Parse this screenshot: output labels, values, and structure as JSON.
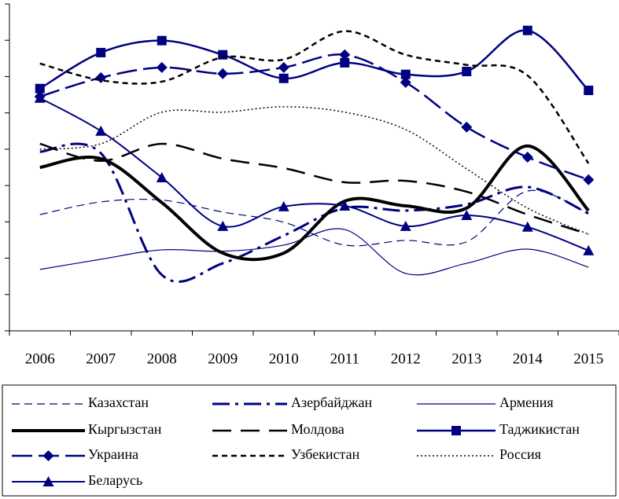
{
  "chart_data": {
    "type": "line",
    "categories": [
      "2006",
      "2007",
      "2008",
      "2009",
      "2010",
      "2011",
      "2012",
      "2013",
      "2014",
      "2015"
    ],
    "ylim": [
      0,
      9
    ],
    "yticks": [
      0,
      1,
      2,
      3,
      4,
      5,
      6,
      7,
      8,
      9
    ],
    "smooth": true,
    "legend": "bottom",
    "series": [
      {
        "name": "Казахстан",
        "color": "#000080",
        "dash": "10 6",
        "width": 1.2,
        "marker": "none",
        "values": [
          3.2,
          3.55,
          3.6,
          3.27,
          2.99,
          2.36,
          2.49,
          2.45,
          3.85,
          3.23
        ]
      },
      {
        "name": "Азербайджан",
        "color": "#000080",
        "dash": "22 7 4 7",
        "width": 3,
        "marker": "none",
        "values": [
          4.93,
          4.89,
          1.54,
          1.86,
          2.62,
          3.38,
          3.31,
          3.48,
          3.96,
          3.23
        ]
      },
      {
        "name": "Армения",
        "color": "#000080",
        "dash": "none",
        "width": 1.2,
        "marker": "none",
        "values": [
          1.69,
          1.97,
          2.23,
          2.19,
          2.36,
          2.79,
          1.58,
          1.86,
          2.25,
          1.75
        ]
      },
      {
        "name": "Кыргызстан",
        "color": "#000000",
        "dash": "none",
        "width": 4,
        "marker": "none",
        "values": [
          4.5,
          4.74,
          3.53,
          2.14,
          2.14,
          3.57,
          3.44,
          3.38,
          5.09,
          3.31
        ]
      },
      {
        "name": "Молдова",
        "color": "#000000",
        "dash": "24 12",
        "width": 2.5,
        "marker": "none",
        "values": [
          5.15,
          4.68,
          5.15,
          4.74,
          4.48,
          4.09,
          4.13,
          3.83,
          3.2,
          2.66
        ]
      },
      {
        "name": "Таджикистан",
        "color": "#000080",
        "dash": "none",
        "width": 2.5,
        "marker": "square",
        "values": [
          6.67,
          7.66,
          7.99,
          7.6,
          6.95,
          7.38,
          7.06,
          7.14,
          8.27,
          6.62
        ]
      },
      {
        "name": "Украина",
        "color": "#000080",
        "dash": "26 8",
        "width": 2.5,
        "marker": "diamond",
        "values": [
          6.45,
          6.97,
          7.25,
          7.08,
          7.25,
          7.6,
          6.84,
          5.61,
          4.78,
          4.16
        ]
      },
      {
        "name": "Узбекистан",
        "color": "#000000",
        "dash": "7 5",
        "width": 2.5,
        "marker": "none",
        "values": [
          7.36,
          6.9,
          6.86,
          7.53,
          7.47,
          8.25,
          7.6,
          7.32,
          7.03,
          4.61
        ]
      },
      {
        "name": "Россия",
        "color": "#000000",
        "dash": "2 3",
        "width": 1.5,
        "marker": "none",
        "values": [
          5.0,
          5.15,
          6.02,
          6.02,
          6.17,
          6.02,
          5.54,
          4.46,
          3.38,
          2.66
        ]
      },
      {
        "name": "Беларусь",
        "color": "#000080",
        "dash": "none",
        "width": 2,
        "marker": "triangle",
        "values": [
          6.41,
          5.5,
          4.22,
          2.88,
          3.42,
          3.44,
          2.88,
          3.18,
          2.86,
          2.21
        ]
      }
    ]
  }
}
